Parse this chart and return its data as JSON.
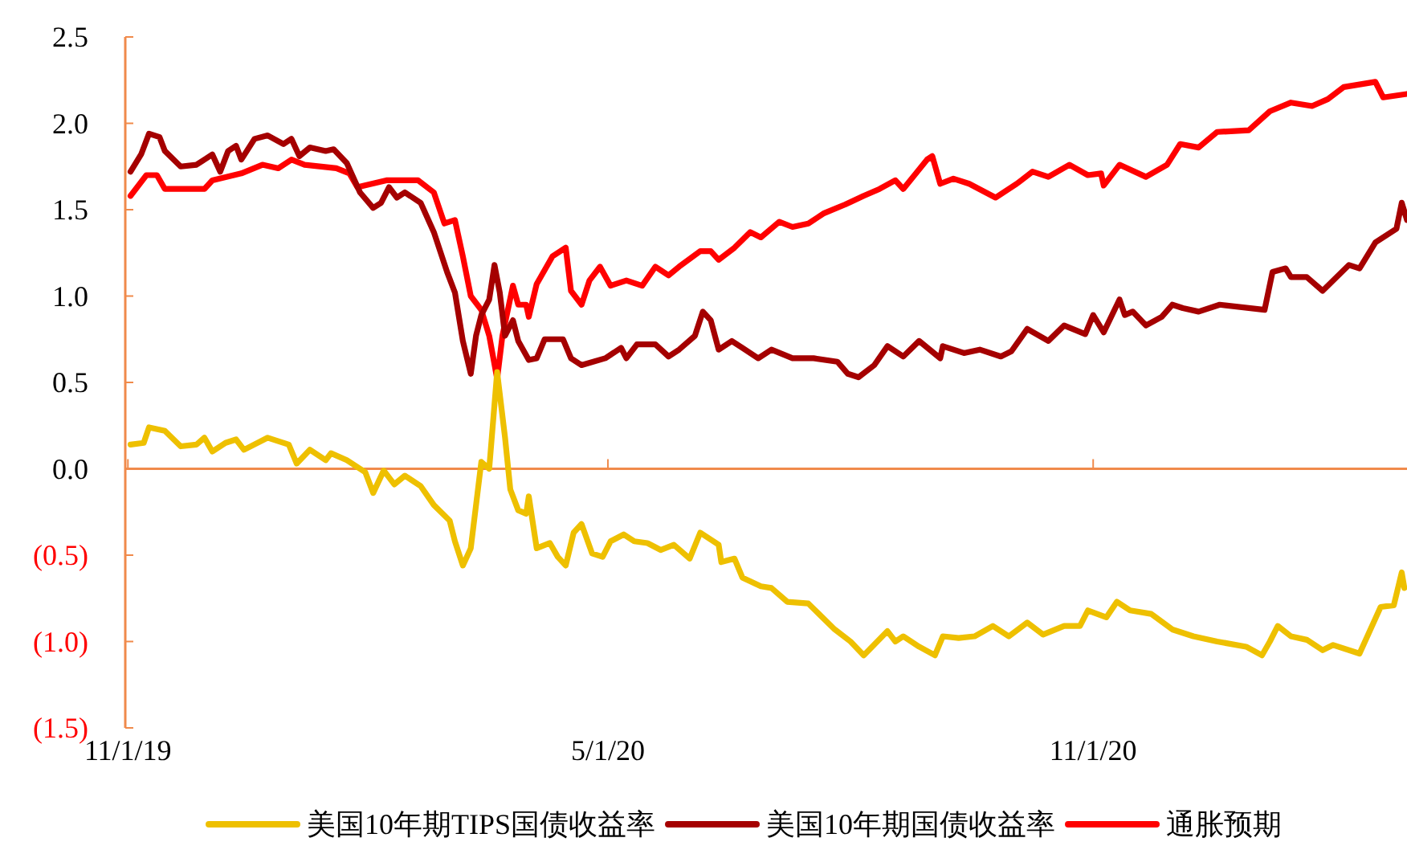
{
  "chart_data": {
    "type": "line",
    "xlim": [
      "2019-10-31",
      "2021-02-28"
    ],
    "xticks": [
      {
        "value": "2019-11-01",
        "label": "11/1/19"
      },
      {
        "value": "2020-05-01",
        "label": "5/1/20"
      },
      {
        "value": "2020-11-01",
        "label": "11/1/20"
      }
    ],
    "ylim": [
      -1.5,
      2.5
    ],
    "yticks": [
      {
        "value": 2.5,
        "label": "2.5"
      },
      {
        "value": 2.0,
        "label": "2.0"
      },
      {
        "value": 1.5,
        "label": "1.5"
      },
      {
        "value": 1.0,
        "label": "1.0"
      },
      {
        "value": 0.5,
        "label": "0.5"
      },
      {
        "value": 0,
        "label": "0.0"
      },
      {
        "value": -0.5,
        "label": "(0.5)"
      },
      {
        "value": -1.0,
        "label": "(1.0)"
      },
      {
        "value": -1.5,
        "label": "(1.5)"
      }
    ],
    "legend": "bottom",
    "ref_lines": [
      {
        "axis": "y",
        "value": 0,
        "color": "#f08a4b"
      }
    ],
    "series": [
      {
        "name": "美国10年期TIPS国债收益率",
        "color": "#eec000",
        "x": [
          "2019-11-02",
          "2019-11-07",
          "2019-11-09",
          "2019-11-15",
          "2019-11-21",
          "2019-11-27",
          "2019-11-30",
          "2019-12-03",
          "2019-12-08",
          "2019-12-12",
          "2019-12-15",
          "2019-12-24",
          "2020-01-01",
          "2020-01-04",
          "2020-01-09",
          "2020-01-15",
          "2020-01-17",
          "2020-01-23",
          "2020-01-30",
          "2020-02-02",
          "2020-02-06",
          "2020-02-10",
          "2020-02-14",
          "2020-02-20",
          "2020-02-25",
          "2020-03-02",
          "2020-03-04",
          "2020-03-07",
          "2020-03-10",
          "2020-03-14",
          "2020-03-17",
          "2020-03-20",
          "2020-03-23",
          "2020-03-25",
          "2020-03-28",
          "2020-03-31",
          "2020-04-01",
          "2020-04-04",
          "2020-04-09",
          "2020-04-12",
          "2020-04-15",
          "2020-04-18",
          "2020-04-21",
          "2020-04-25",
          "2020-04-29",
          "2020-05-02",
          "2020-05-07",
          "2020-05-11",
          "2020-05-16",
          "2020-05-21",
          "2020-05-26",
          "2020-06-01",
          "2020-06-05",
          "2020-06-12",
          "2020-06-13",
          "2020-06-18",
          "2020-06-21",
          "2020-06-28",
          "2020-07-02",
          "2020-07-08",
          "2020-07-16",
          "2020-07-20",
          "2020-07-26",
          "2020-08-01",
          "2020-08-06",
          "2020-08-15",
          "2020-08-18",
          "2020-08-21",
          "2020-08-27",
          "2020-09-02",
          "2020-09-05",
          "2020-09-11",
          "2020-09-17",
          "2020-09-24",
          "2020-09-30",
          "2020-10-07",
          "2020-10-13",
          "2020-10-21",
          "2020-10-27",
          "2020-10-30",
          "2020-11-06",
          "2020-11-10",
          "2020-11-15",
          "2020-11-23",
          "2020-12-01",
          "2020-12-09",
          "2020-12-18",
          "2020-12-29",
          "2021-01-04",
          "2021-01-07",
          "2021-01-10",
          "2021-01-15",
          "2021-01-21",
          "2021-01-27",
          "2021-01-31",
          "2021-02-10",
          "2021-02-18",
          "2021-02-23",
          "2021-02-26",
          "2021-02-27"
        ],
        "values": [
          0.14,
          0.15,
          0.24,
          0.22,
          0.13,
          0.14,
          0.18,
          0.1,
          0.15,
          0.17,
          0.11,
          0.18,
          0.14,
          0.03,
          0.11,
          0.05,
          0.09,
          0.05,
          -0.02,
          -0.14,
          -0.01,
          -0.09,
          -0.04,
          -0.1,
          -0.21,
          -0.3,
          -0.42,
          -0.56,
          -0.46,
          0.04,
          0.0,
          0.56,
          0.18,
          -0.12,
          -0.24,
          -0.26,
          -0.16,
          -0.46,
          -0.43,
          -0.51,
          -0.56,
          -0.37,
          -0.32,
          -0.49,
          -0.51,
          -0.42,
          -0.38,
          -0.42,
          -0.43,
          -0.47,
          -0.44,
          -0.52,
          -0.37,
          -0.44,
          -0.54,
          -0.52,
          -0.63,
          -0.68,
          -0.69,
          -0.77,
          -0.78,
          -0.84,
          -0.93,
          -1.0,
          -1.08,
          -0.94,
          -1.0,
          -0.97,
          -1.03,
          -1.08,
          -0.97,
          -0.98,
          -0.97,
          -0.91,
          -0.97,
          -0.89,
          -0.96,
          -0.91,
          -0.91,
          -0.82,
          -0.86,
          -0.77,
          -0.82,
          -0.84,
          -0.93,
          -0.97,
          -1.0,
          -1.03,
          -1.08,
          -1.0,
          -0.91,
          -0.97,
          -0.99,
          -1.05,
          -1.02,
          -1.07,
          -0.8,
          -0.79,
          -0.6,
          -0.69
        ]
      },
      {
        "name": "美国10年期国债收益率",
        "color": "#a50000",
        "x": [
          "2019-11-02",
          "2019-11-06",
          "2019-11-09",
          "2019-11-13",
          "2019-11-15",
          "2019-11-21",
          "2019-11-27",
          "2019-12-03",
          "2019-12-06",
          "2019-12-09",
          "2019-12-12",
          "2019-12-14",
          "2019-12-19",
          "2019-12-24",
          "2019-12-30",
          "2020-01-02",
          "2020-01-05",
          "2020-01-09",
          "2020-01-15",
          "2020-01-18",
          "2020-01-23",
          "2020-01-28",
          "2020-02-02",
          "2020-02-05",
          "2020-02-08",
          "2020-02-11",
          "2020-02-14",
          "2020-02-20",
          "2020-02-25",
          "2020-03-01",
          "2020-03-04",
          "2020-03-07",
          "2020-03-10",
          "2020-03-12",
          "2020-03-14",
          "2020-03-17",
          "2020-03-19",
          "2020-03-21",
          "2020-03-23",
          "2020-03-26",
          "2020-03-28",
          "2020-04-01",
          "2020-04-04",
          "2020-04-07",
          "2020-04-14",
          "2020-04-17",
          "2020-04-21",
          "2020-04-30",
          "2020-05-06",
          "2020-05-08",
          "2020-05-12",
          "2020-05-19",
          "2020-05-24",
          "2020-05-28",
          "2020-06-03",
          "2020-06-06",
          "2020-06-09",
          "2020-06-12",
          "2020-06-17",
          "2020-06-21",
          "2020-06-27",
          "2020-07-02",
          "2020-07-10",
          "2020-07-18",
          "2020-07-27",
          "2020-07-31",
          "2020-08-04",
          "2020-08-10",
          "2020-08-15",
          "2020-08-21",
          "2020-08-27",
          "2020-09-04",
          "2020-09-05",
          "2020-09-13",
          "2020-09-19",
          "2020-09-27",
          "2020-10-01",
          "2020-10-07",
          "2020-10-15",
          "2020-10-21",
          "2020-10-29",
          "2020-11-01",
          "2020-11-05",
          "2020-11-11",
          "2020-11-13",
          "2020-11-16",
          "2020-11-21",
          "2020-11-27",
          "2020-12-01",
          "2020-12-05",
          "2020-12-11",
          "2020-12-19",
          "2021-01-05",
          "2021-01-08",
          "2021-01-13",
          "2021-01-15",
          "2021-01-21",
          "2021-01-27",
          "2021-02-06",
          "2021-02-10",
          "2021-02-16",
          "2021-02-20",
          "2021-02-24",
          "2021-02-26",
          "2021-02-28"
        ],
        "values": [
          1.72,
          1.82,
          1.94,
          1.92,
          1.84,
          1.75,
          1.76,
          1.82,
          1.72,
          1.84,
          1.87,
          1.79,
          1.91,
          1.93,
          1.88,
          1.91,
          1.81,
          1.86,
          1.84,
          1.85,
          1.77,
          1.6,
          1.51,
          1.54,
          1.63,
          1.57,
          1.6,
          1.54,
          1.37,
          1.14,
          1.02,
          0.74,
          0.55,
          0.77,
          0.89,
          0.98,
          1.18,
          1.02,
          0.77,
          0.86,
          0.74,
          0.63,
          0.64,
          0.75,
          0.75,
          0.64,
          0.6,
          0.64,
          0.7,
          0.64,
          0.72,
          0.72,
          0.65,
          0.69,
          0.77,
          0.91,
          0.86,
          0.69,
          0.74,
          0.7,
          0.64,
          0.69,
          0.64,
          0.64,
          0.62,
          0.55,
          0.53,
          0.6,
          0.71,
          0.65,
          0.74,
          0.64,
          0.71,
          0.67,
          0.69,
          0.65,
          0.68,
          0.81,
          0.74,
          0.83,
          0.78,
          0.89,
          0.79,
          0.98,
          0.89,
          0.91,
          0.83,
          0.88,
          0.95,
          0.93,
          0.91,
          0.95,
          0.92,
          1.14,
          1.16,
          1.11,
          1.11,
          1.03,
          1.18,
          1.16,
          1.31,
          1.35,
          1.39,
          1.54,
          1.44
        ]
      },
      {
        "name": "通胀预期",
        "color": "#ff0000",
        "x": [
          "2019-11-02",
          "2019-11-08",
          "2019-11-12",
          "2019-11-15",
          "2019-11-30",
          "2019-12-03",
          "2019-12-14",
          "2019-12-22",
          "2019-12-28",
          "2020-01-02",
          "2020-01-07",
          "2020-01-19",
          "2020-01-24",
          "2020-01-27",
          "2020-02-07",
          "2020-02-19",
          "2020-02-25",
          "2020-02-29",
          "2020-03-04",
          "2020-03-07",
          "2020-03-10",
          "2020-03-14",
          "2020-03-17",
          "2020-03-20",
          "2020-03-22",
          "2020-03-26",
          "2020-03-28",
          "2020-03-31",
          "2020-04-01",
          "2020-04-04",
          "2020-04-10",
          "2020-04-15",
          "2020-04-17",
          "2020-04-21",
          "2020-04-24",
          "2020-04-28",
          "2020-05-02",
          "2020-05-08",
          "2020-05-14",
          "2020-05-19",
          "2020-05-24",
          "2020-05-28",
          "2020-06-05",
          "2020-06-09",
          "2020-06-12",
          "2020-06-18",
          "2020-06-24",
          "2020-06-28",
          "2020-07-05",
          "2020-07-10",
          "2020-07-16",
          "2020-07-22",
          "2020-07-30",
          "2020-08-06",
          "2020-08-12",
          "2020-08-18",
          "2020-08-21",
          "2020-08-30",
          "2020-09-01",
          "2020-09-04",
          "2020-09-09",
          "2020-09-15",
          "2020-09-25",
          "2020-10-03",
          "2020-10-09",
          "2020-10-15",
          "2020-10-23",
          "2020-10-30",
          "2020-11-04",
          "2020-11-05",
          "2020-11-11",
          "2020-11-21",
          "2020-11-29",
          "2020-12-04",
          "2020-12-11",
          "2020-12-18",
          "2020-12-30",
          "2021-01-07",
          "2021-01-15",
          "2021-01-23",
          "2021-01-29",
          "2021-02-04",
          "2021-02-16",
          "2021-02-19",
          "2021-02-28"
        ],
        "values": [
          1.58,
          1.7,
          1.7,
          1.62,
          1.62,
          1.67,
          1.71,
          1.76,
          1.74,
          1.79,
          1.76,
          1.74,
          1.71,
          1.63,
          1.67,
          1.67,
          1.6,
          1.42,
          1.44,
          1.23,
          1.0,
          0.92,
          0.77,
          0.52,
          0.77,
          1.06,
          0.95,
          0.95,
          0.88,
          1.07,
          1.23,
          1.28,
          1.03,
          0.95,
          1.09,
          1.17,
          1.06,
          1.09,
          1.06,
          1.17,
          1.12,
          1.17,
          1.26,
          1.26,
          1.21,
          1.28,
          1.37,
          1.34,
          1.43,
          1.4,
          1.42,
          1.48,
          1.53,
          1.58,
          1.62,
          1.67,
          1.62,
          1.79,
          1.81,
          1.65,
          1.68,
          1.65,
          1.57,
          1.65,
          1.72,
          1.69,
          1.76,
          1.7,
          1.71,
          1.64,
          1.76,
          1.69,
          1.76,
          1.88,
          1.86,
          1.95,
          1.96,
          2.07,
          2.12,
          2.1,
          2.14,
          2.21,
          2.24,
          2.15,
          2.17
        ]
      }
    ]
  }
}
